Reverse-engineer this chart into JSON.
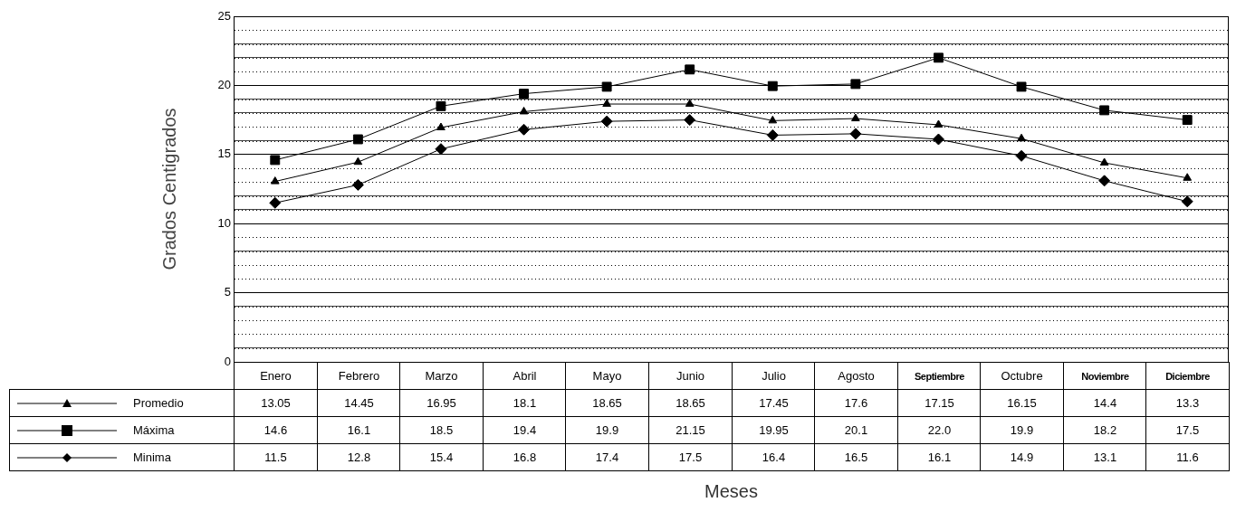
{
  "chart_data": {
    "type": "line",
    "annotations": [
      "Meses"
    ],
    "ylabel": "Grados Centigrados",
    "categories": [
      "Enero",
      "Febrero",
      "Marzo",
      "Abril",
      "Mayo",
      "Junio",
      "Julio",
      "Agosto",
      "Septiembre",
      "Octubre",
      "Noviembre",
      "Diciembre"
    ],
    "series": [
      {
        "name": "Promedio",
        "color": "#000000",
        "marker": "triangle",
        "values": [
          13.05,
          14.45,
          16.95,
          18.1,
          18.65,
          18.65,
          17.45,
          17.6,
          17.15,
          16.15,
          14.4,
          13.3
        ],
        "value_labels": [
          "13.05",
          "14.45",
          "16.95",
          "18.1",
          "18.65",
          "18.65",
          "17.45",
          "17.6",
          "17.15",
          "16.15",
          "14.4",
          "13.3"
        ]
      },
      {
        "name": "Máxima",
        "color": "#000000",
        "marker": "square",
        "values": [
          14.6,
          16.1,
          18.5,
          19.4,
          19.9,
          21.15,
          19.95,
          20.1,
          22.0,
          19.9,
          18.2,
          17.5
        ],
        "value_labels": [
          "14.6",
          "16.1",
          "18.5",
          "19.4",
          "19.9",
          "21.15",
          "19.95",
          "20.1",
          "22.0",
          "19.9",
          "18.2",
          "17.5"
        ]
      },
      {
        "name": "Minima",
        "color": "#000000",
        "marker": "diamond",
        "values": [
          11.5,
          12.8,
          15.4,
          16.8,
          17.4,
          17.5,
          16.4,
          16.5,
          16.1,
          14.9,
          13.1,
          11.6
        ],
        "value_labels": [
          "11.5",
          "12.8",
          "15.4",
          "16.8",
          "17.4",
          "17.5",
          "16.4",
          "16.5",
          "16.1",
          "14.9",
          "13.1",
          "11.6"
        ]
      }
    ],
    "ylim": [
      0,
      25
    ],
    "yticks": [
      0,
      {
        "value": 1,
        "label": null
      },
      {
        "value": 2,
        "label": null
      },
      {
        "value": 3,
        "label": null
      },
      {
        "value": 4,
        "label": null
      },
      5,
      {
        "value": 6,
        "label": null
      },
      {
        "value": 7,
        "label": null
      },
      {
        "value": 8,
        "label": null
      },
      {
        "value": 9,
        "label": null
      },
      10,
      {
        "value": 11,
        "label": null
      },
      {
        "value": 12,
        "label": null
      },
      {
        "value": 13,
        "label": null
      },
      {
        "value": 14,
        "label": null
      },
      15,
      {
        "value": 16,
        "label": null
      },
      {
        "value": 17,
        "label": null
      },
      {
        "value": 18,
        "label": null
      },
      {
        "value": 19,
        "label": null
      },
      20,
      {
        "value": 21,
        "label": null
      },
      {
        "value": 22,
        "label": null
      },
      {
        "value": 23,
        "label": null
      },
      {
        "value": 24,
        "label": null
      },
      25
    ],
    "grid": "y",
    "legend": "bottom left",
    "line_style": "solid"
  }
}
